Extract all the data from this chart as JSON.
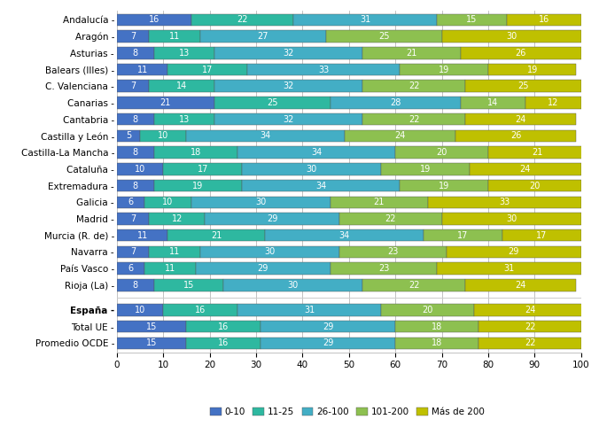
{
  "categories": [
    "Andalucía",
    "Aragón",
    "Asturias",
    "Balears (Illes)",
    "C. Valenciana",
    "Canarias",
    "Cantabria",
    "Castilla y León",
    "Castilla-La Mancha",
    "Cataluña",
    "Extremadura",
    "Galicia",
    "Madrid",
    "Murcia (R. de)",
    "Navarra",
    "País Vasco",
    "Rioja (La)"
  ],
  "summary_categories": [
    "España",
    "Total UE",
    "Promedio OCDE"
  ],
  "data": [
    [
      16,
      22,
      31,
      15,
      16
    ],
    [
      7,
      11,
      27,
      25,
      30
    ],
    [
      8,
      13,
      32,
      21,
      26
    ],
    [
      11,
      17,
      33,
      19,
      19
    ],
    [
      7,
      14,
      32,
      22,
      25
    ],
    [
      21,
      25,
      28,
      14,
      12
    ],
    [
      8,
      13,
      32,
      22,
      24
    ],
    [
      5,
      10,
      34,
      24,
      26
    ],
    [
      8,
      18,
      34,
      20,
      21
    ],
    [
      10,
      17,
      30,
      19,
      24
    ],
    [
      8,
      19,
      34,
      19,
      20
    ],
    [
      6,
      10,
      30,
      21,
      33
    ],
    [
      7,
      12,
      29,
      22,
      30
    ],
    [
      11,
      21,
      34,
      17,
      17
    ],
    [
      7,
      11,
      30,
      23,
      29
    ],
    [
      6,
      11,
      29,
      23,
      31
    ],
    [
      8,
      15,
      30,
      22,
      24
    ]
  ],
  "summary_data": [
    [
      10,
      16,
      31,
      20,
      24
    ],
    [
      15,
      16,
      29,
      18,
      22
    ],
    [
      15,
      16,
      29,
      18,
      22
    ]
  ],
  "colors": [
    "#4472c4",
    "#2eb8a0",
    "#43aec5",
    "#8dc050",
    "#bfc000"
  ],
  "legend_labels": [
    "0-10",
    "11-25",
    "26-100",
    "101-200",
    "Más de 200"
  ],
  "xlim": [
    0,
    100
  ],
  "xlabel_ticks": [
    0,
    10,
    20,
    30,
    40,
    50,
    60,
    70,
    80,
    90,
    100
  ],
  "bar_height": 0.72,
  "figsize": [
    6.76,
    4.82
  ],
  "dpi": 100,
  "text_fontsize": 7.0,
  "tick_fontsize": 7.5,
  "legend_fontsize": 7.5
}
